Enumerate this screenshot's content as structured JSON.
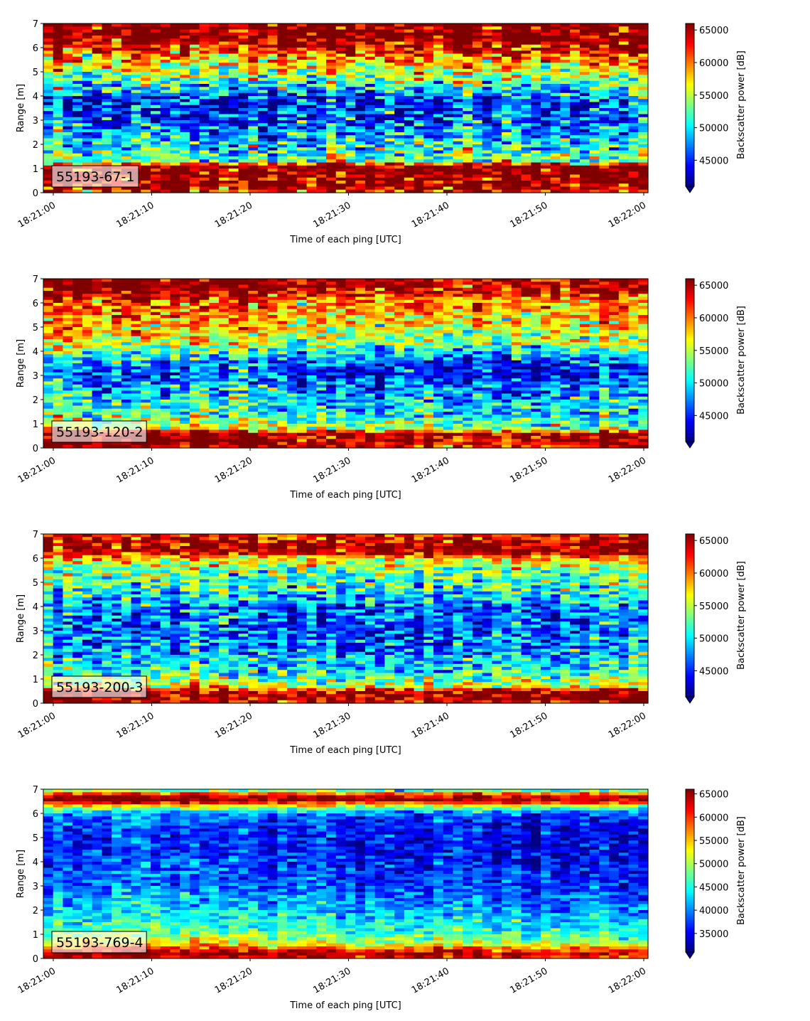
{
  "chart_data": [
    {
      "type": "heatmap",
      "annotation": "55193-67-1",
      "xlabel": "Time of each ping [UTC]",
      "ylabel": "Range [m]",
      "colorbar_label": "Backscatter power [dB]",
      "x_ticks": [
        "18:21:00",
        "18:21:10",
        "18:21:20",
        "18:21:30",
        "18:21:40",
        "18:21:50",
        "18:22:00"
      ],
      "y_ticks": [
        "0",
        "1",
        "2",
        "3",
        "4",
        "5",
        "6",
        "7"
      ],
      "ylim": [
        0,
        7
      ],
      "colorbar_ticks": [
        "45000",
        "50000",
        "55000",
        "60000",
        "65000"
      ],
      "colorbar_range": [
        41000,
        66000
      ],
      "colormap": "jet",
      "profile": [
        [
          0.0,
          62000
        ],
        [
          0.25,
          66000
        ],
        [
          1.1,
          66000
        ],
        [
          1.3,
          53000
        ],
        [
          2.0,
          50000
        ],
        [
          3.0,
          45500
        ],
        [
          3.8,
          44500
        ],
        [
          4.3,
          50000
        ],
        [
          5.0,
          55000
        ],
        [
          5.6,
          59000
        ],
        [
          6.0,
          63000
        ],
        [
          6.4,
          66000
        ],
        [
          7.0,
          66000
        ]
      ],
      "noise_std": 5000,
      "trend": [
        [
          0.0,
          0
        ],
        [
          1.0,
          0
        ]
      ]
    },
    {
      "type": "heatmap",
      "annotation": "55193-120-2",
      "xlabel": "Time of each ping [UTC]",
      "ylabel": "Range [m]",
      "colorbar_label": "Backscatter power [dB]",
      "x_ticks": [
        "18:21:00",
        "18:21:10",
        "18:21:20",
        "18:21:30",
        "18:21:40",
        "18:21:50",
        "18:22:00"
      ],
      "y_ticks": [
        "0",
        "1",
        "2",
        "3",
        "4",
        "5",
        "6",
        "7"
      ],
      "ylim": [
        0,
        7
      ],
      "colorbar_ticks": [
        "45000",
        "50000",
        "55000",
        "60000",
        "65000"
      ],
      "colorbar_range": [
        41000,
        66000
      ],
      "colormap": "jet",
      "profile": [
        [
          0.0,
          63000
        ],
        [
          0.2,
          66000
        ],
        [
          0.6,
          66000
        ],
        [
          0.8,
          55000
        ],
        [
          1.5,
          51000
        ],
        [
          2.5,
          48000
        ],
        [
          3.2,
          45000
        ],
        [
          3.6,
          47000
        ],
        [
          4.3,
          55000
        ],
        [
          5.2,
          58000
        ],
        [
          6.0,
          60000
        ],
        [
          6.4,
          64000
        ],
        [
          6.7,
          66000
        ],
        [
          7.0,
          66000
        ]
      ],
      "noise_std": 4200,
      "trend": [
        [
          0.0,
          1500
        ],
        [
          0.4,
          0
        ],
        [
          0.7,
          -2000
        ],
        [
          1.0,
          0
        ]
      ]
    },
    {
      "type": "heatmap",
      "annotation": "55193-200-3",
      "xlabel": "Time of each ping [UTC]",
      "ylabel": "Range [m]",
      "colorbar_label": "Backscatter power [dB]",
      "x_ticks": [
        "18:21:00",
        "18:21:10",
        "18:21:20",
        "18:21:30",
        "18:21:40",
        "18:21:50",
        "18:22:00"
      ],
      "y_ticks": [
        "0",
        "1",
        "2",
        "3",
        "4",
        "5",
        "6",
        "7"
      ],
      "ylim": [
        0,
        7
      ],
      "colorbar_ticks": [
        "45000",
        "50000",
        "55000",
        "60000",
        "65000"
      ],
      "colorbar_range": [
        41000,
        66000
      ],
      "colormap": "jet",
      "profile": [
        [
          0.0,
          63000
        ],
        [
          0.15,
          66000
        ],
        [
          0.45,
          66000
        ],
        [
          0.7,
          56000
        ],
        [
          1.2,
          52000
        ],
        [
          2.0,
          49000
        ],
        [
          3.0,
          46500
        ],
        [
          4.0,
          48000
        ],
        [
          4.8,
          52000
        ],
        [
          5.5,
          54000
        ],
        [
          6.0,
          58000
        ],
        [
          6.2,
          65000
        ],
        [
          6.6,
          66000
        ],
        [
          7.0,
          62000
        ]
      ],
      "noise_std": 4200,
      "trend": [
        [
          0.0,
          1000
        ],
        [
          0.5,
          -1500
        ],
        [
          1.0,
          0
        ]
      ]
    },
    {
      "type": "heatmap",
      "annotation": "55193-769-4",
      "xlabel": "Time of each ping [UTC]",
      "ylabel": "Range [m]",
      "colorbar_label": "Backscatter power [dB]",
      "x_ticks": [
        "18:21:00",
        "18:21:10",
        "18:21:20",
        "18:21:30",
        "18:21:40",
        "18:21:50",
        "18:22:00"
      ],
      "y_ticks": [
        "0",
        "1",
        "2",
        "3",
        "4",
        "5",
        "6",
        "7"
      ],
      "ylim": [
        0,
        7
      ],
      "colorbar_ticks": [
        "35000",
        "40000",
        "45000",
        "50000",
        "55000",
        "60000",
        "65000"
      ],
      "colorbar_range": [
        31000,
        66000
      ],
      "colormap": "jet",
      "profile": [
        [
          0.0,
          60000
        ],
        [
          0.15,
          66000
        ],
        [
          0.3,
          62000
        ],
        [
          0.6,
          52000
        ],
        [
          1.0,
          47000
        ],
        [
          2.0,
          42000
        ],
        [
          3.0,
          38000
        ],
        [
          4.5,
          36000
        ],
        [
          5.5,
          36000
        ],
        [
          6.0,
          40000
        ],
        [
          6.3,
          52000
        ],
        [
          6.55,
          66000
        ],
        [
          6.75,
          64000
        ],
        [
          7.0,
          42000
        ]
      ],
      "noise_std": 3500,
      "trend": [
        [
          0.0,
          2000
        ],
        [
          0.5,
          0
        ],
        [
          1.0,
          -1500
        ]
      ]
    }
  ]
}
